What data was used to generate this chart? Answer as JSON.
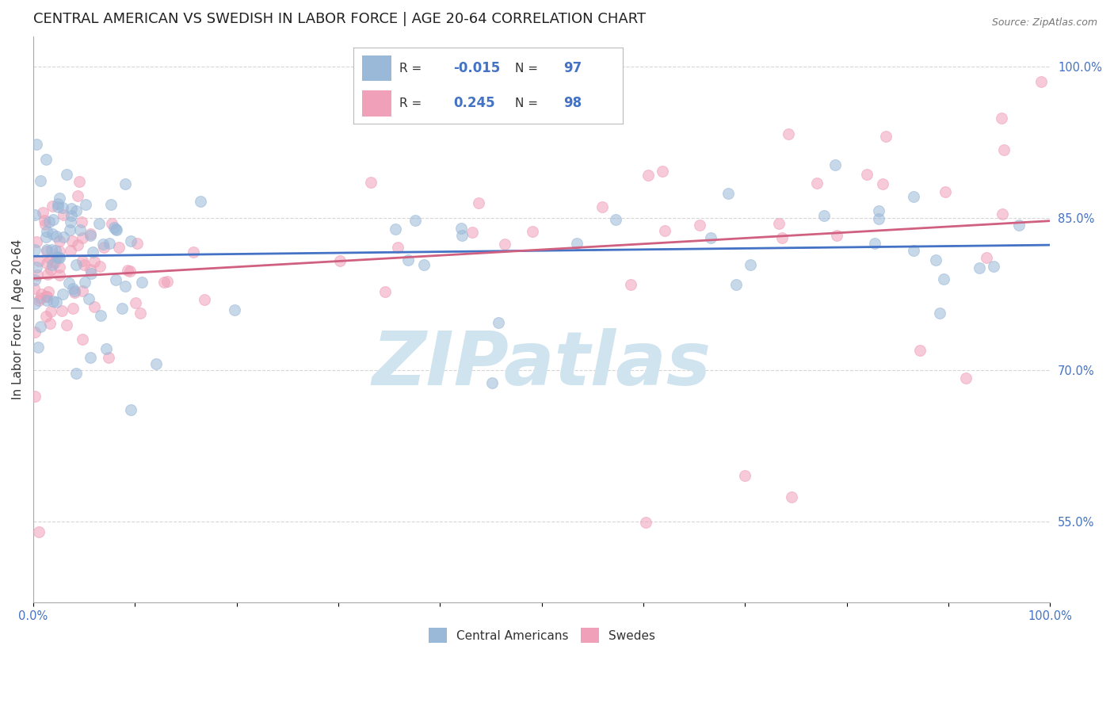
{
  "title": "CENTRAL AMERICAN VS SWEDISH IN LABOR FORCE | AGE 20-64 CORRELATION CHART",
  "source": "Source: ZipAtlas.com",
  "ylabel": "In Labor Force | Age 20-64",
  "xlim": [
    0.0,
    1.0
  ],
  "ylim": [
    0.47,
    1.03
  ],
  "x_ticks": [
    0.0,
    0.1,
    0.2,
    0.3,
    0.4,
    0.5,
    0.6,
    0.7,
    0.8,
    0.9,
    1.0
  ],
  "y_ticks_right": [
    0.55,
    0.7,
    0.85,
    1.0
  ],
  "legend_r_blue": "-0.015",
  "legend_n_blue": "97",
  "legend_r_pink": "0.245",
  "legend_n_pink": "98",
  "blue_color": "#9ab8d8",
  "pink_color": "#f0a0b8",
  "line_blue": "#4472c4",
  "line_pink": "#d06080",
  "watermark": "ZIPatlas",
  "watermark_color": "#d0e4f0",
  "background_color": "#ffffff",
  "grid_color": "#cccccc",
  "title_fontsize": 13,
  "axis_label_fontsize": 11,
  "tick_fontsize": 10.5,
  "scatter_alpha": 0.55,
  "scatter_size": 100,
  "dashed_line_color": "#aaaacc",
  "blue_line_y_intercept": 0.834,
  "blue_line_slope": -0.004,
  "pink_line_y_intercept": 0.8,
  "pink_line_slope": 0.095
}
